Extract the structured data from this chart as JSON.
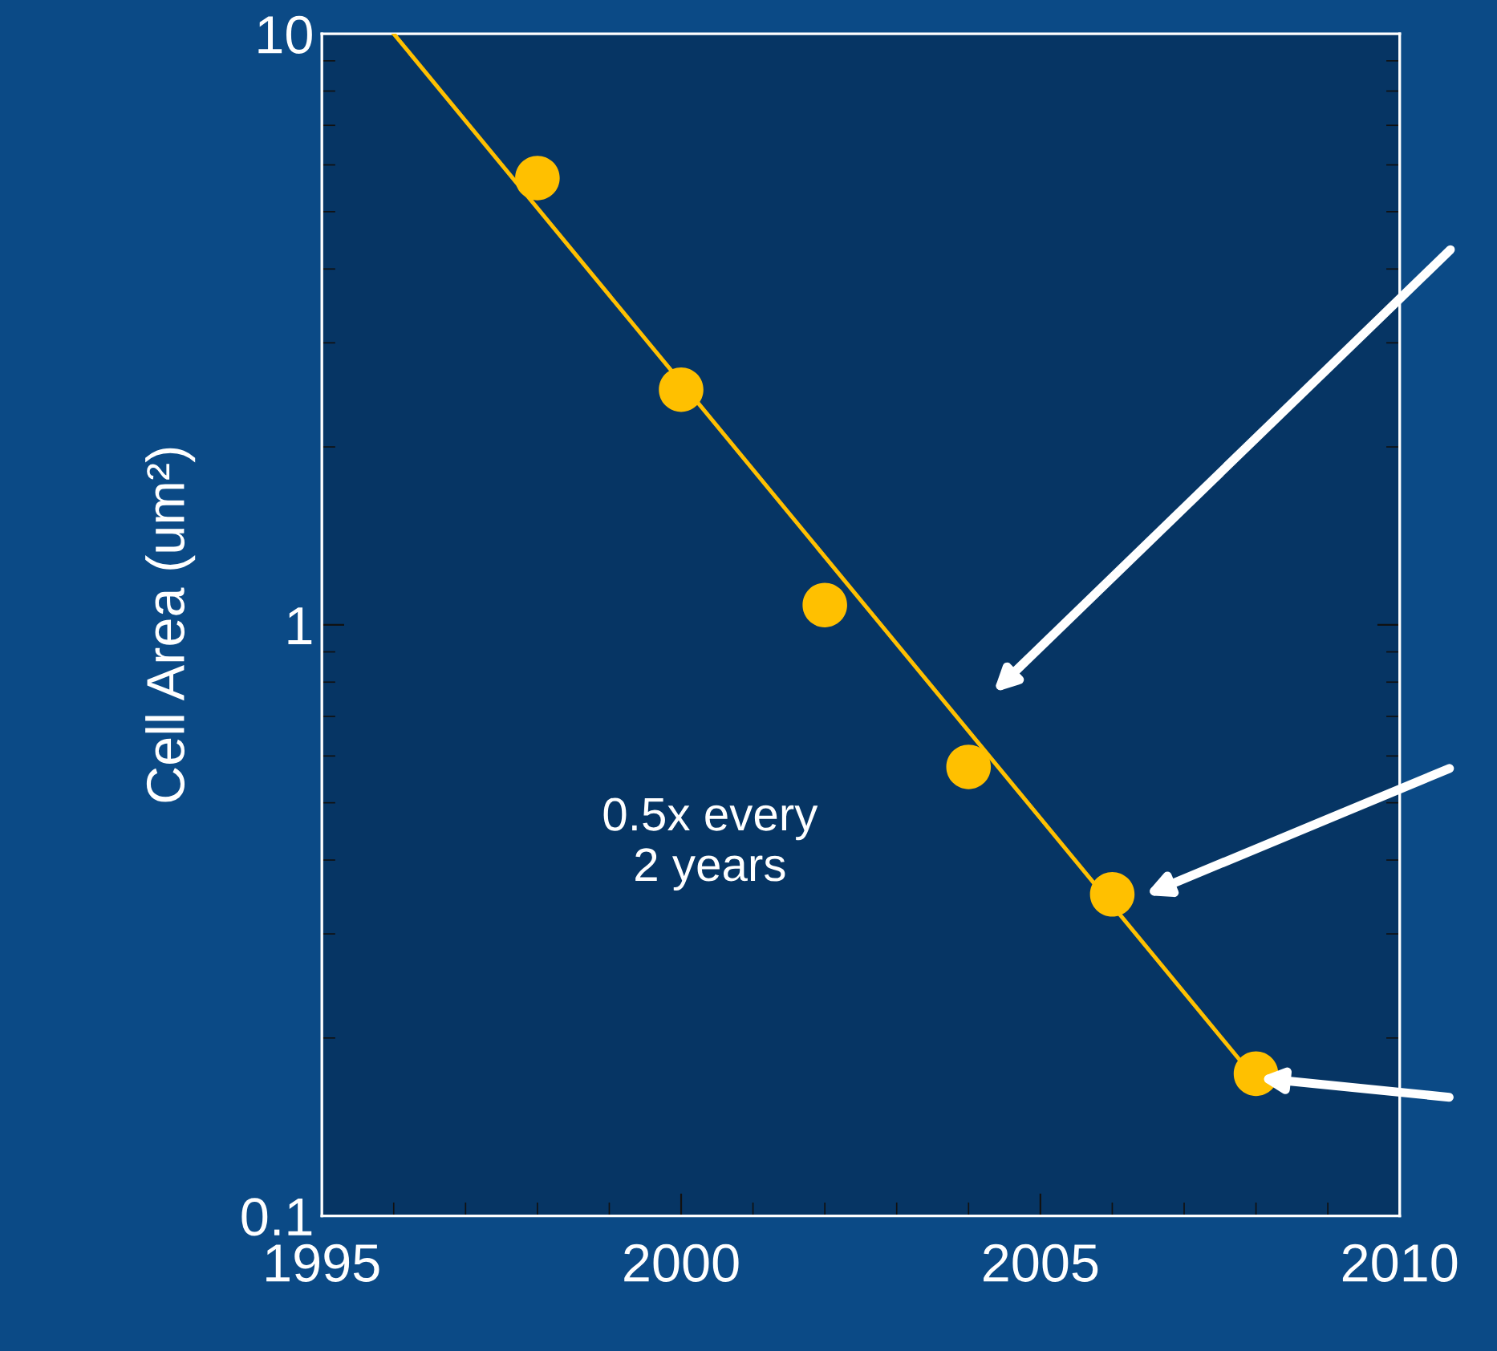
{
  "chart_data": {
    "type": "scatter",
    "ylabel": "Cell Area (um²)",
    "log": "y",
    "xlim": [
      1995,
      2010
    ],
    "xticks": [
      1995,
      2000,
      2005,
      2010
    ],
    "ylim": [
      0.1,
      10
    ],
    "yticks": [
      0.1,
      1,
      10
    ],
    "grid": false,
    "legend": false,
    "marker": "circle",
    "series": [
      {
        "color": "#ffc000",
        "x": [
          1998,
          2000,
          2002,
          2004,
          2006,
          2008
        ],
        "values": [
          5.7,
          2.5,
          1.08,
          0.575,
          0.35,
          0.174
        ]
      },
      {
        "type": "line",
        "marker": "none",
        "color": "#ffc000",
        "x": [
          1996,
          2008
        ],
        "values": [
          10,
          0.17
        ]
      }
    ],
    "annotations": [
      "0.5x every\n2 years"
    ]
  }
}
